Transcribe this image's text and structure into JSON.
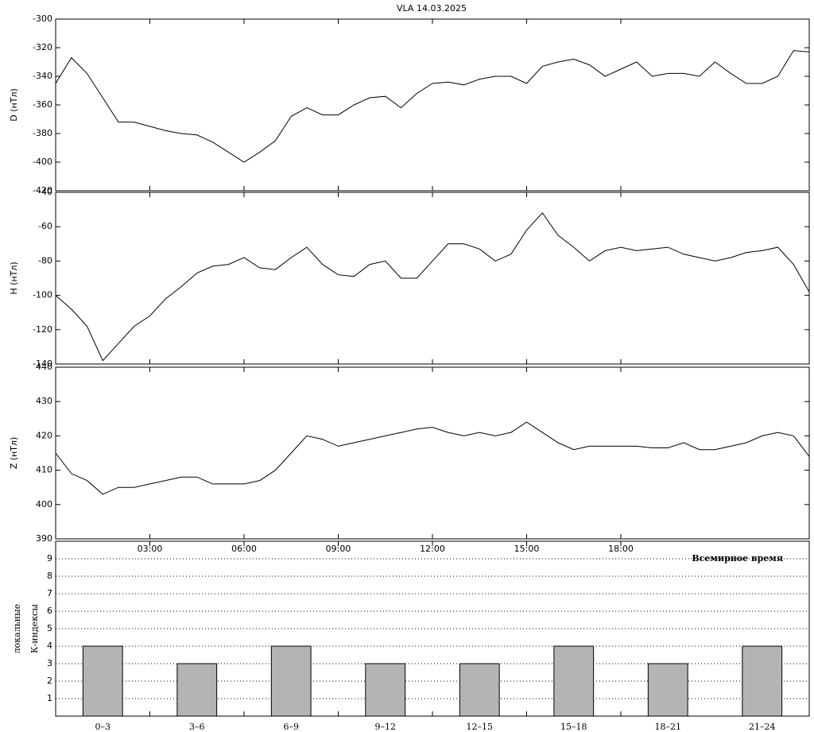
{
  "chart_data": [
    {
      "type": "line",
      "title": "VLA   14.03.2025",
      "y_label": "D (нТл)",
      "color": "#000000",
      "x": [
        0,
        0.5,
        1,
        1.5,
        2,
        2.5,
        3,
        3.5,
        4,
        4.5,
        5,
        5.5,
        6,
        6.5,
        7,
        7.5,
        8,
        8.5,
        9,
        9.5,
        10,
        10.5,
        11,
        11.5,
        12,
        12.5,
        13,
        13.5,
        14,
        14.5,
        15,
        15.5,
        16,
        16.5,
        17,
        17.5,
        18,
        18.5,
        19,
        19.5,
        20,
        20.5,
        21,
        21.5,
        22,
        22.5,
        23,
        23.5,
        24
      ],
      "values": [
        -345,
        -327,
        -338,
        -355,
        -372,
        -372,
        -375,
        -378,
        -380,
        -381,
        -386,
        -393,
        -400,
        -393,
        -385,
        -368,
        -362,
        -367,
        -367,
        -360,
        -355,
        -354,
        -362,
        -352,
        -345,
        -344,
        -346,
        -342,
        -340,
        -340,
        -345,
        -333,
        -330,
        -328,
        -332,
        -340,
        -335,
        -330,
        -340,
        -338,
        -338,
        -340,
        -330,
        -338,
        -345,
        -345,
        -340,
        -322,
        -323
      ],
      "xlim": [
        0,
        24
      ],
      "ylim": [
        -420,
        -300
      ],
      "yticks": [
        -420,
        -400,
        -380,
        -360,
        -340,
        -320,
        -300
      ]
    },
    {
      "type": "line",
      "y_label": "H (нТл)",
      "color": "#000000",
      "x": [
        0,
        0.5,
        1,
        1.5,
        2,
        2.5,
        3,
        3.5,
        4,
        4.5,
        5,
        5.5,
        6,
        6.5,
        7,
        7.5,
        8,
        8.5,
        9,
        9.5,
        10,
        10.5,
        11,
        11.5,
        12,
        12.5,
        13,
        13.5,
        14,
        14.5,
        15,
        15.5,
        16,
        16.5,
        17,
        17.5,
        18,
        18.5,
        19,
        19.5,
        20,
        20.5,
        21,
        21.5,
        22,
        22.5,
        23,
        23.5,
        24
      ],
      "values": [
        -100,
        -108,
        -118,
        -138,
        -128,
        -118,
        -112,
        -102,
        -95,
        -87,
        -83,
        -82,
        -78,
        -84,
        -85,
        -78,
        -72,
        -82,
        -88,
        -89,
        -82,
        -80,
        -90,
        -90,
        -80,
        -70,
        -70,
        -73,
        -80,
        -76,
        -62,
        -52,
        -65,
        -72,
        -80,
        -74,
        -72,
        -74,
        -73,
        -72,
        -76,
        -78,
        -80,
        -78,
        -75,
        -74,
        -72,
        -82,
        -98
      ],
      "xlim": [
        0,
        24
      ],
      "ylim": [
        -140,
        -40
      ],
      "yticks": [
        -140,
        -120,
        -100,
        -80,
        -60,
        -40
      ]
    },
    {
      "type": "line",
      "y_label": "Z (нТл)",
      "color": "#000000",
      "x": [
        0,
        0.5,
        1,
        1.5,
        2,
        2.5,
        3,
        3.5,
        4,
        4.5,
        5,
        5.5,
        6,
        6.5,
        7,
        7.5,
        8,
        8.5,
        9,
        9.5,
        10,
        10.5,
        11,
        11.5,
        12,
        12.5,
        13,
        13.5,
        14,
        14.5,
        15,
        15.5,
        16,
        16.5,
        17,
        17.5,
        18,
        18.5,
        19,
        19.5,
        20,
        20.5,
        21,
        21.5,
        22,
        22.5,
        23,
        23.5,
        24
      ],
      "values": [
        415,
        409,
        407,
        403,
        405,
        405,
        406,
        407,
        408,
        408,
        406,
        406,
        406,
        407,
        410,
        415,
        420,
        419,
        417,
        418,
        419,
        420,
        421,
        422,
        422.5,
        421,
        420,
        421,
        420,
        421,
        424,
        421,
        418,
        416,
        417,
        417,
        417,
        417,
        416.5,
        416.5,
        418,
        416,
        416,
        417,
        418,
        420,
        421,
        420,
        414
      ],
      "xlim": [
        0,
        24
      ],
      "ylim": [
        390,
        440
      ],
      "yticks": [
        390,
        400,
        410,
        420,
        430,
        440
      ]
    },
    {
      "type": "bar",
      "y_label": [
        "локальные",
        "К-индексы"
      ],
      "x_label": "Всемирное время",
      "color": "#b4b4b4",
      "categories": [
        "0–3",
        "3–6",
        "6–9",
        "9–12",
        "12–15",
        "15–18",
        "18–21",
        "21–24"
      ],
      "values": [
        4,
        3,
        4,
        3,
        3,
        4,
        3,
        4
      ],
      "xlim": [
        0,
        24
      ],
      "xticks": [
        {
          "value": 3,
          "label": "03:00"
        },
        {
          "value": 6,
          "label": "06:00"
        },
        {
          "value": 9,
          "label": "09:00"
        },
        {
          "value": 12,
          "label": "12:00"
        },
        {
          "value": 15,
          "label": "15:00"
        },
        {
          "value": 18,
          "label": "18:00"
        }
      ],
      "ylim": [
        0,
        10
      ],
      "yticks": [
        1,
        2,
        3,
        4,
        5,
        6,
        7,
        8,
        9
      ],
      "grid": true
    }
  ]
}
